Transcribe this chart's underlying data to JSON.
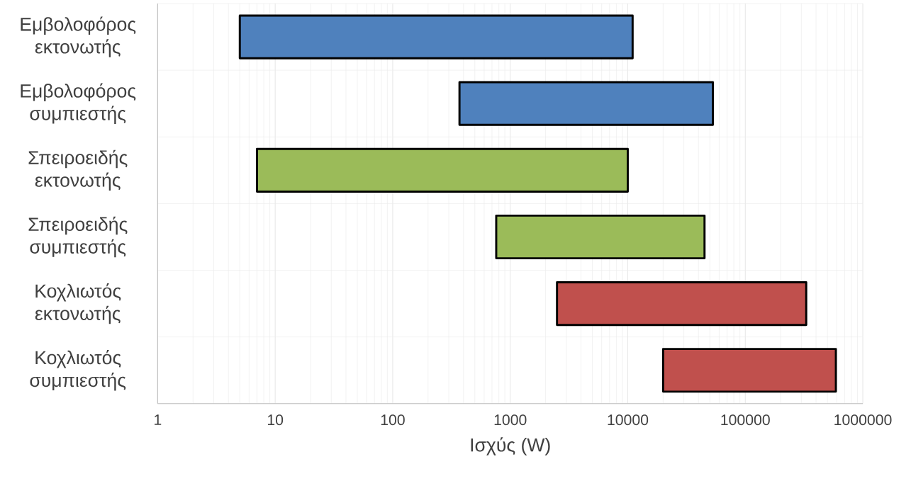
{
  "chart_data": {
    "type": "bar",
    "orientation": "horizontal",
    "log": "x",
    "categories": [
      "Εμβολοφόρος εκτονωτής",
      "Εμβολοφόρος συμπιεστής",
      "Σπειροειδής εκτονωτής",
      "Σπειροειδής συμπιεστής",
      "Κοχλιωτός εκτονωτής",
      "Κοχλιωτός συμπιεστής"
    ],
    "base": [
      5,
      370,
      7,
      760,
      2500,
      20000
    ],
    "values": [
      10995,
      52630,
      9993,
      44240,
      327500,
      570000
    ],
    "colors": [
      "#4f81bd",
      "#4f81bd",
      "#9bbb59",
      "#9bbb59",
      "#c0504d",
      "#c0504d"
    ],
    "xlim": [
      1,
      1000000
    ],
    "xticks": [
      1,
      10,
      100,
      1000,
      10000,
      100000,
      1000000
    ],
    "xlabel": "Ισχύς (W)",
    "grid": true
  }
}
